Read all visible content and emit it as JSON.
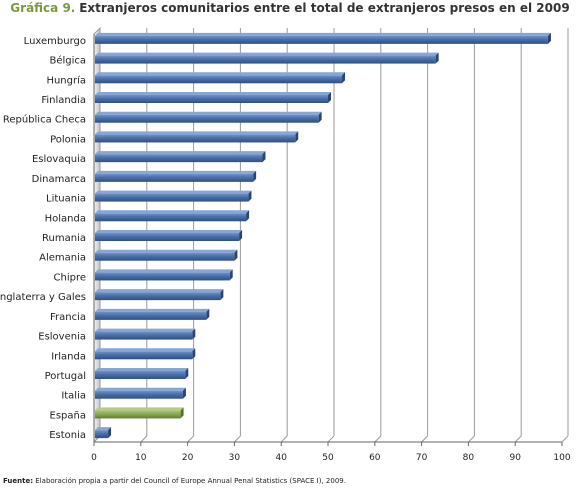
{
  "title": {
    "prefix": "Gráfica 9.",
    "text": "Extranjeros comunitarios entre el total de extranjeros presos en el 2009"
  },
  "source": {
    "label": "Fuente:",
    "text": "Elaboración propia a partir del Council of Europe Annual Penal Statistics (SPACE I), 2009."
  },
  "colors": {
    "bar": "#4a6fa8",
    "bar_highlight": "#8caa55",
    "grid": "#9a9a9a",
    "wall": "#dcdcdc"
  },
  "chart_data": {
    "type": "bar",
    "orientation": "horizontal",
    "categories": [
      "Luxemburgo",
      "Bélgica",
      "Hungría",
      "Finlandia",
      "República Checa",
      "Polonia",
      "Eslovaquia",
      "Dinamarca",
      "Lituania",
      "Holanda",
      "Rumania",
      "Alemania",
      "Chipre",
      "Inglaterra y Gales",
      "Francia",
      "Eslovenia",
      "Irlanda",
      "Portugal",
      "Italia",
      "España",
      "Estonia"
    ],
    "values": [
      97,
      73,
      53,
      50,
      48,
      43,
      36,
      34,
      33,
      32.5,
      31,
      30,
      29,
      27,
      24,
      21,
      21,
      19.5,
      19,
      18.5,
      3
    ],
    "highlight": "España",
    "xlim": [
      0,
      100
    ],
    "xticks": [
      0,
      10,
      20,
      30,
      40,
      50,
      60,
      70,
      80,
      90,
      100
    ],
    "grid": true
  }
}
